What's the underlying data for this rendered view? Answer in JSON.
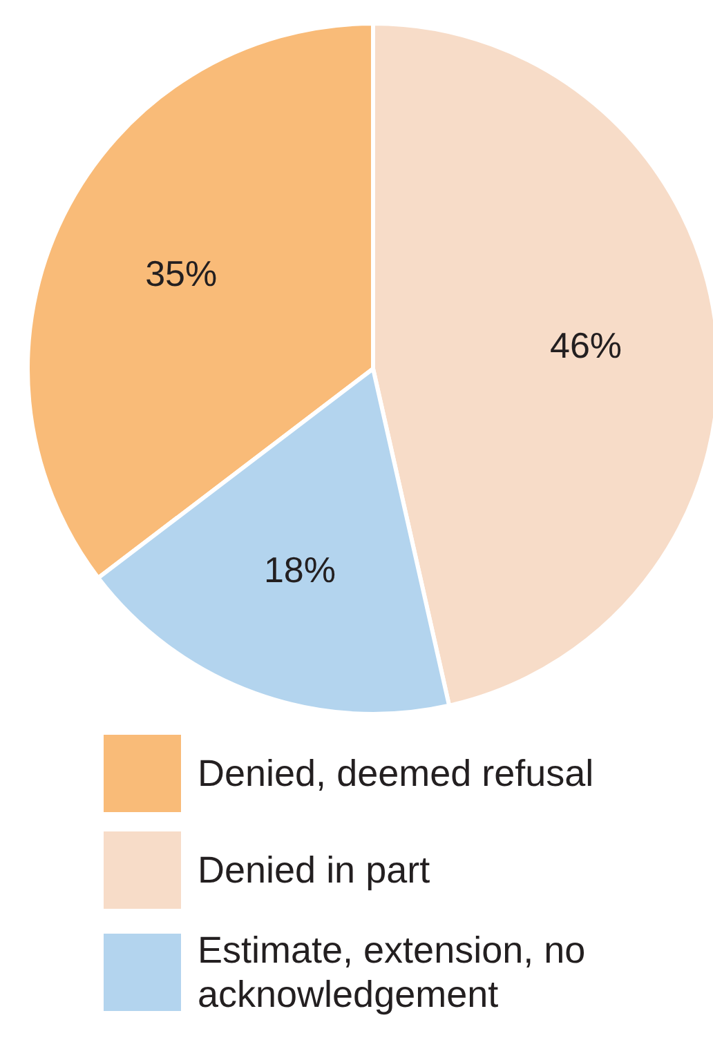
{
  "chart_data": {
    "type": "pie",
    "categories": [
      "Denied, deemed refusal",
      "Denied in part",
      "Estimate, extension, no acknowledgement"
    ],
    "values": [
      35,
      46,
      18
    ],
    "colors": [
      "#f9bb78",
      "#f7dcc8",
      "#b3d4ee"
    ],
    "value_labels": [
      "35%",
      "46%",
      "18%"
    ],
    "legend": "bottom"
  }
}
